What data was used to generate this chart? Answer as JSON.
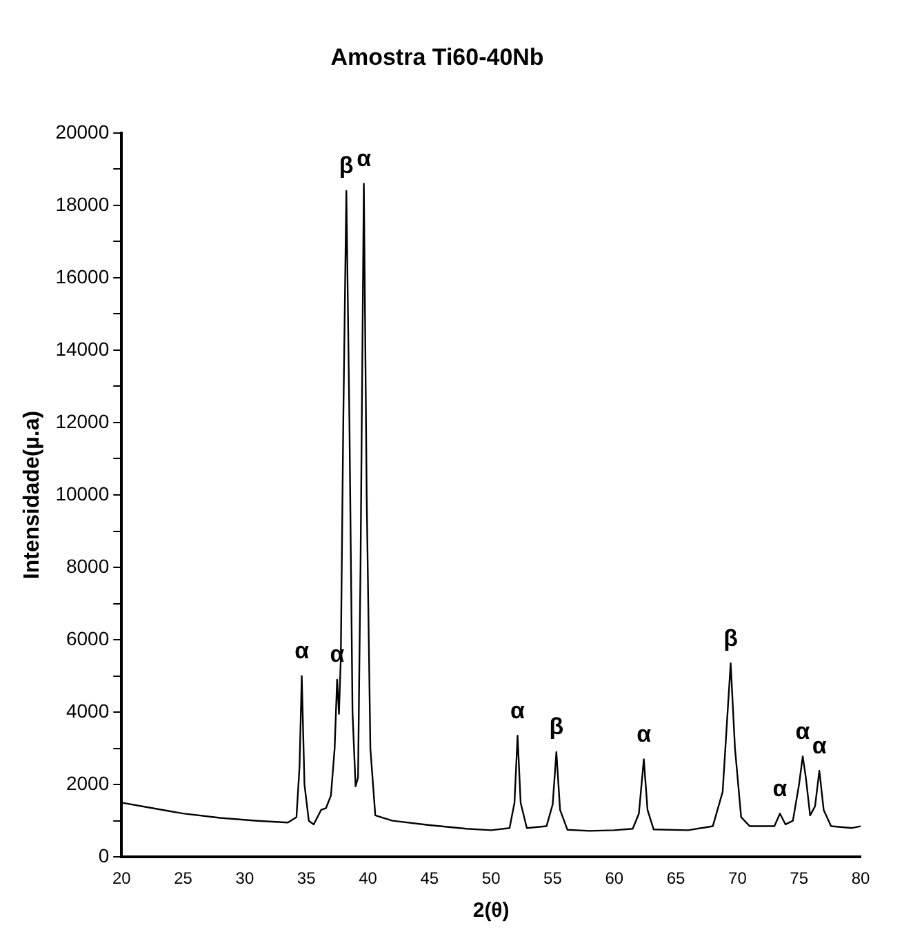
{
  "chart_data": {
    "type": "line",
    "title": "Amostra Ti60-40Nb",
    "xlabel": "2(θ)",
    "ylabel": "Intensidade(µ.a)",
    "x": [
      20,
      22,
      25,
      28,
      31,
      33.5,
      34.2,
      34.45,
      34.63,
      34.85,
      35.2,
      35.6,
      36.2,
      36.6,
      37.0,
      37.3,
      37.5,
      37.65,
      37.8,
      38.0,
      38.25,
      38.5,
      38.75,
      39.0,
      39.2,
      39.4,
      39.67,
      39.9,
      40.2,
      40.6,
      42,
      45,
      48,
      50,
      51.5,
      51.9,
      52.15,
      52.4,
      52.9,
      54.5,
      55.0,
      55.3,
      55.6,
      56.2,
      58,
      60,
      61.5,
      62.0,
      62.4,
      62.7,
      63.2,
      66,
      68,
      68.8,
      69.2,
      69.45,
      69.8,
      70.3,
      71,
      73,
      73.45,
      73.9,
      74.5,
      75.0,
      75.3,
      75.55,
      75.9,
      76.3,
      76.65,
      77.0,
      77.6,
      79.3,
      80
    ],
    "series": [
      {
        "color": "#000000",
        "values": [
          1500,
          1380,
          1200,
          1080,
          1000,
          950,
          1100,
          2500,
          5000,
          2000,
          1000,
          900,
          1300,
          1350,
          1700,
          3000,
          4900,
          3950,
          5500,
          12000,
          18400,
          12000,
          4000,
          1950,
          2200,
          8000,
          18600,
          10000,
          3000,
          1150,
          1000,
          880,
          780,
          740,
          800,
          1500,
          3350,
          1500,
          800,
          850,
          1450,
          2900,
          1300,
          750,
          720,
          740,
          780,
          1200,
          2700,
          1300,
          760,
          740,
          850,
          1800,
          4000,
          5350,
          3000,
          1100,
          850,
          850,
          1200,
          900,
          1000,
          2000,
          2780,
          2200,
          1150,
          1400,
          2380,
          1300,
          850,
          800,
          850
        ]
      }
    ],
    "xlim": [
      20,
      80
    ],
    "xticks": [
      20,
      25,
      30,
      35,
      40,
      45,
      50,
      55,
      60,
      65,
      70,
      75,
      80
    ],
    "ylim": [
      0,
      20000
    ],
    "yticks": [
      0,
      {
        "value": 1000,
        "label": null
      },
      2000,
      {
        "value": 3000,
        "label": null
      },
      4000,
      {
        "value": 5000,
        "label": null
      },
      6000,
      {
        "value": 7000,
        "label": null
      },
      8000,
      {
        "value": 9000,
        "label": null
      },
      10000,
      {
        "value": 11000,
        "label": null
      },
      12000,
      {
        "value": 13000,
        "label": null
      },
      14000,
      {
        "value": 15000,
        "label": null
      },
      16000,
      {
        "value": 17000,
        "label": null
      },
      18000,
      {
        "value": 19000,
        "label": null
      },
      20000
    ],
    "grid": false,
    "marker": "none",
    "line_style": "solid",
    "annotations": [
      {
        "text": "α",
        "x": 34.63,
        "y": 5000
      },
      {
        "text": "α",
        "x": 37.5,
        "y": 4900
      },
      {
        "text": "β",
        "x": 38.25,
        "y": 18400
      },
      {
        "text": "α",
        "x": 39.67,
        "y": 18600
      },
      {
        "text": "α",
        "x": 52.15,
        "y": 3350
      },
      {
        "text": "β",
        "x": 55.3,
        "y": 2900
      },
      {
        "text": "α",
        "x": 62.4,
        "y": 2700
      },
      {
        "text": "β",
        "x": 69.45,
        "y": 5350
      },
      {
        "text": "α",
        "x": 73.45,
        "y": 1200
      },
      {
        "text": "α",
        "x": 75.3,
        "y": 2780
      },
      {
        "text": "α",
        "x": 76.65,
        "y": 2380
      }
    ]
  }
}
